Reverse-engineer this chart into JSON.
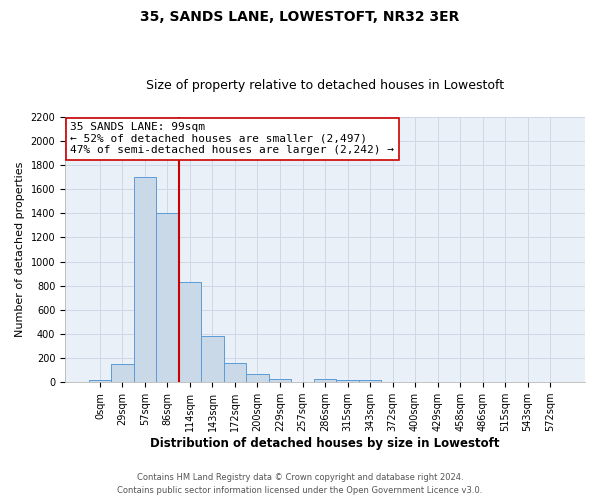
{
  "title": "35, SANDS LANE, LOWESTOFT, NR32 3ER",
  "subtitle": "Size of property relative to detached houses in Lowestoft",
  "xlabel": "Distribution of detached houses by size in Lowestoft",
  "ylabel": "Number of detached properties",
  "bin_labels": [
    "0sqm",
    "29sqm",
    "57sqm",
    "86sqm",
    "114sqm",
    "143sqm",
    "172sqm",
    "200sqm",
    "229sqm",
    "257sqm",
    "286sqm",
    "315sqm",
    "343sqm",
    "372sqm",
    "400sqm",
    "429sqm",
    "458sqm",
    "486sqm",
    "515sqm",
    "543sqm",
    "572sqm"
  ],
  "bar_heights": [
    15,
    155,
    1700,
    1400,
    830,
    380,
    160,
    65,
    30,
    0,
    25,
    20,
    15,
    0,
    0,
    0,
    0,
    0,
    0,
    0,
    0
  ],
  "bar_color": "#c9d9e8",
  "bar_edge_color": "#5b9bd5",
  "vline_x": 3.5,
  "vline_color": "#cc0000",
  "annotation_line1": "35 SANDS LANE: 99sqm",
  "annotation_line2": "← 52% of detached houses are smaller (2,497)",
  "annotation_line3": "47% of semi-detached houses are larger (2,242) →",
  "annotation_box_edge_color": "#cc0000",
  "annotation_box_face_color": "white",
  "ylim": [
    0,
    2200
  ],
  "yticks": [
    0,
    200,
    400,
    600,
    800,
    1000,
    1200,
    1400,
    1600,
    1800,
    2000,
    2200
  ],
  "footer1": "Contains HM Land Registry data © Crown copyright and database right 2024.",
  "footer2": "Contains public sector information licensed under the Open Government Licence v3.0.",
  "grid_color": "#d0d8e8",
  "bg_color": "#eaf0f8",
  "title_fontsize": 10,
  "subtitle_fontsize": 9,
  "xlabel_fontsize": 8.5,
  "ylabel_fontsize": 8,
  "tick_fontsize": 7,
  "annotation_fontsize": 8,
  "footer_fontsize": 6
}
